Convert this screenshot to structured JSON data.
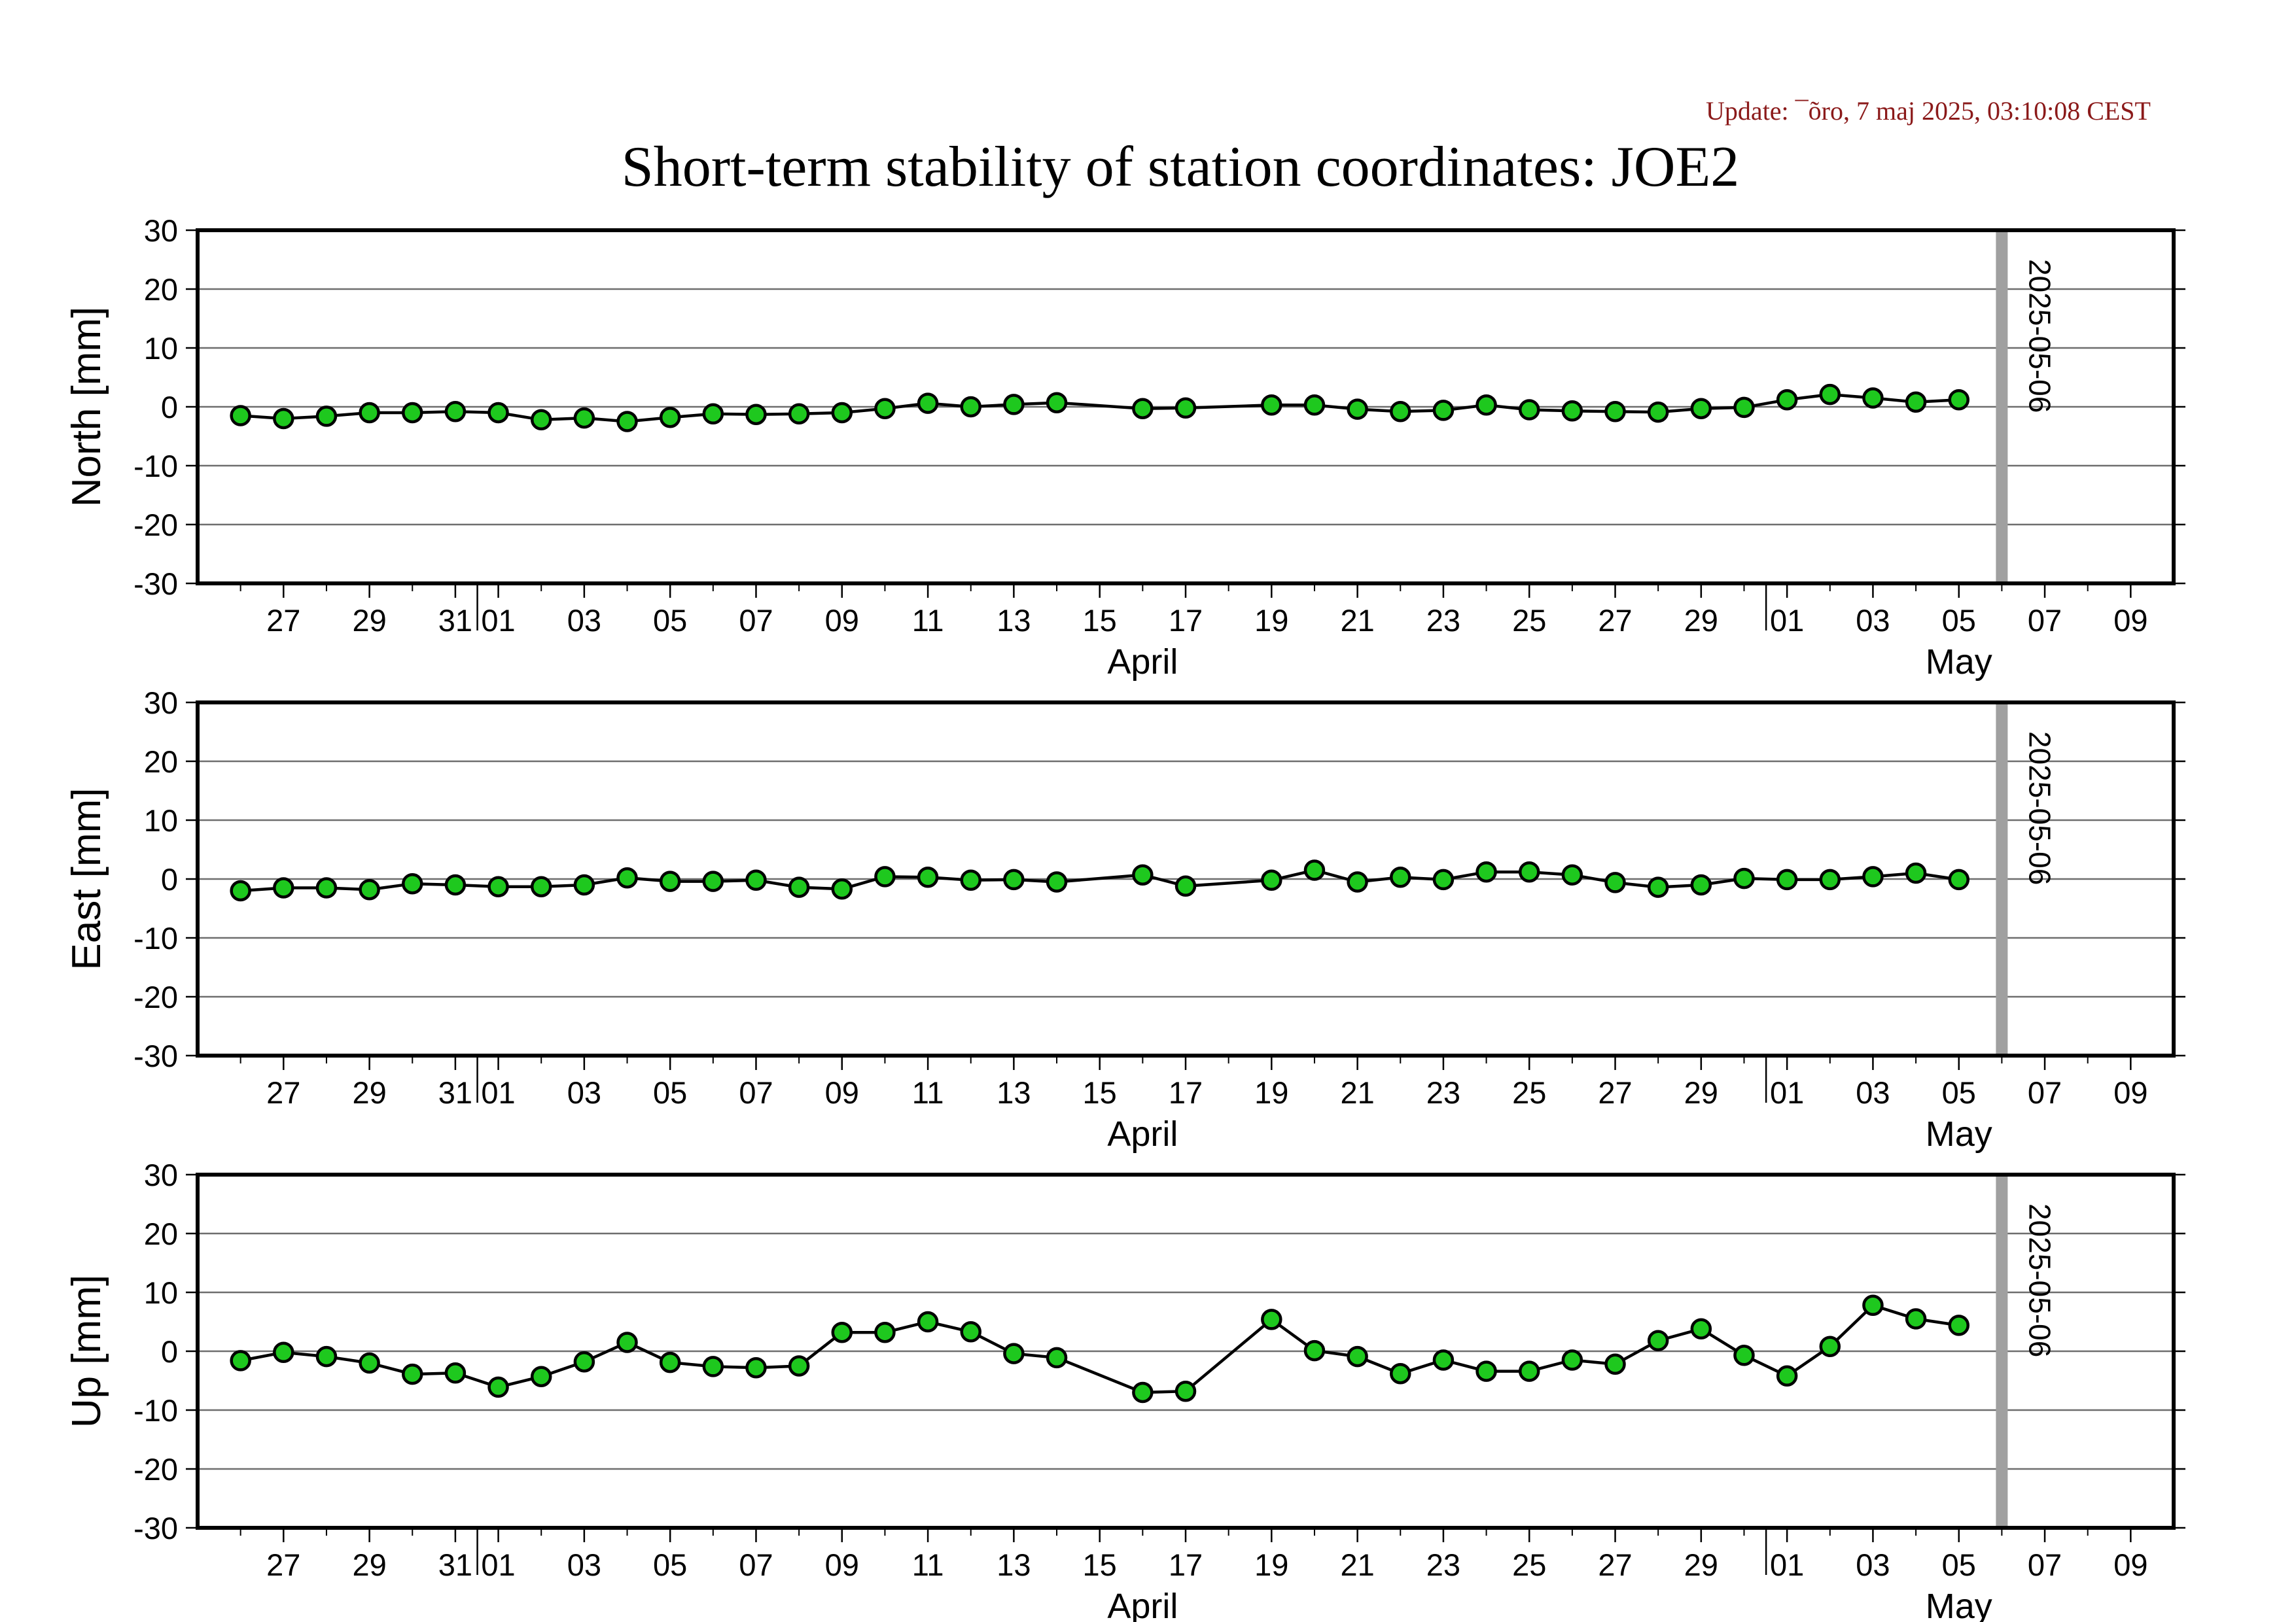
{
  "update_text": "Update: ¯õro, 7 maj 2025, 03:10:08 CEST",
  "title": "Short-term stability of station coordinates: JOE2",
  "colors": {
    "update": "#8b1a1a",
    "marker_fill": "#1ec81e",
    "marker_stroke": "#000000",
    "line": "#000000",
    "grid": "#6e6e6e",
    "marker_line": "#a0a0a0",
    "frame": "#000000"
  },
  "x_axis": {
    "range": [
      "2025-03-25",
      "2025-05-10"
    ],
    "date_tick_labels": [
      {
        "date": "2025-03-27",
        "label": "27"
      },
      {
        "date": "2025-03-29",
        "label": "29"
      },
      {
        "date": "2025-03-31",
        "label": "31"
      },
      {
        "date": "2025-04-01",
        "label": "01"
      },
      {
        "date": "2025-04-03",
        "label": "03"
      },
      {
        "date": "2025-04-05",
        "label": "05"
      },
      {
        "date": "2025-04-07",
        "label": "07"
      },
      {
        "date": "2025-04-09",
        "label": "09"
      },
      {
        "date": "2025-04-11",
        "label": "11"
      },
      {
        "date": "2025-04-13",
        "label": "13"
      },
      {
        "date": "2025-04-15",
        "label": "15"
      },
      {
        "date": "2025-04-17",
        "label": "17"
      },
      {
        "date": "2025-04-19",
        "label": "19"
      },
      {
        "date": "2025-04-21",
        "label": "21"
      },
      {
        "date": "2025-04-23",
        "label": "23"
      },
      {
        "date": "2025-04-25",
        "label": "25"
      },
      {
        "date": "2025-04-27",
        "label": "27"
      },
      {
        "date": "2025-04-29",
        "label": "29"
      },
      {
        "date": "2025-05-01",
        "label": "01"
      },
      {
        "date": "2025-05-03",
        "label": "03"
      },
      {
        "date": "2025-05-05",
        "label": "05"
      },
      {
        "date": "2025-05-07",
        "label": "07"
      },
      {
        "date": "2025-05-09",
        "label": "09"
      }
    ],
    "month_labels": [
      {
        "date": "2025-04-16",
        "label": "April"
      },
      {
        "date": "2025-05-05",
        "label": "May"
      }
    ],
    "month_boundaries": [
      "2025-04-01",
      "2025-05-01"
    ]
  },
  "marker": {
    "date": "2025-05-06",
    "label": "2025-05-06"
  },
  "chart_data": [
    {
      "type": "line",
      "ylabel": "North [mm]",
      "ylim": [
        -30,
        30
      ],
      "yticks": [
        30,
        20,
        10,
        0,
        -10,
        -20,
        -30
      ],
      "grid": true,
      "x": [
        "2025-03-26",
        "2025-03-27",
        "2025-03-28",
        "2025-03-29",
        "2025-03-30",
        "2025-03-31",
        "2025-04-01",
        "2025-04-02",
        "2025-04-03",
        "2025-04-04",
        "2025-04-05",
        "2025-04-06",
        "2025-04-07",
        "2025-04-08",
        "2025-04-09",
        "2025-04-10",
        "2025-04-11",
        "2025-04-12",
        "2025-04-13",
        "2025-04-14",
        "2025-04-16",
        "2025-04-17",
        "2025-04-19",
        "2025-04-20",
        "2025-04-21",
        "2025-04-22",
        "2025-04-23",
        "2025-04-24",
        "2025-04-25",
        "2025-04-26",
        "2025-04-27",
        "2025-04-28",
        "2025-04-29",
        "2025-04-30",
        "2025-05-01",
        "2025-05-02",
        "2025-05-03",
        "2025-05-04",
        "2025-05-05"
      ],
      "values": [
        -1.5,
        -2.0,
        -1.6,
        -1.0,
        -1.0,
        -0.8,
        -1.0,
        -2.2,
        -1.9,
        -2.5,
        -1.8,
        -1.2,
        -1.3,
        -1.2,
        -1.0,
        -0.3,
        0.6,
        0.0,
        0.4,
        0.7,
        -0.3,
        -0.2,
        0.3,
        0.3,
        -0.4,
        -0.8,
        -0.6,
        0.3,
        -0.5,
        -0.7,
        -0.8,
        -0.9,
        -0.3,
        -0.1,
        1.2,
        2.1,
        1.5,
        0.8,
        1.2
      ]
    },
    {
      "type": "line",
      "ylabel": "East [mm]",
      "ylim": [
        -30,
        30
      ],
      "yticks": [
        30,
        20,
        10,
        0,
        -10,
        -20,
        -30
      ],
      "grid": true,
      "x": [
        "2025-03-26",
        "2025-03-27",
        "2025-03-28",
        "2025-03-29",
        "2025-03-30",
        "2025-03-31",
        "2025-04-01",
        "2025-04-02",
        "2025-04-03",
        "2025-04-04",
        "2025-04-05",
        "2025-04-06",
        "2025-04-07",
        "2025-04-08",
        "2025-04-09",
        "2025-04-10",
        "2025-04-11",
        "2025-04-12",
        "2025-04-13",
        "2025-04-14",
        "2025-04-16",
        "2025-04-17",
        "2025-04-19",
        "2025-04-20",
        "2025-04-21",
        "2025-04-22",
        "2025-04-23",
        "2025-04-24",
        "2025-04-25",
        "2025-04-26",
        "2025-04-27",
        "2025-04-28",
        "2025-04-29",
        "2025-04-30",
        "2025-05-01",
        "2025-05-02",
        "2025-05-03",
        "2025-05-04",
        "2025-05-05"
      ],
      "values": [
        -2.0,
        -1.5,
        -1.5,
        -1.8,
        -0.8,
        -1.0,
        -1.3,
        -1.3,
        -1.0,
        0.2,
        -0.4,
        -0.4,
        -0.2,
        -1.4,
        -1.7,
        0.4,
        0.3,
        -0.2,
        -0.1,
        -0.5,
        0.7,
        -1.2,
        -0.2,
        1.5,
        -0.5,
        0.3,
        -0.1,
        1.2,
        1.2,
        0.7,
        -0.6,
        -1.4,
        -1.0,
        0.1,
        -0.1,
        -0.1,
        0.4,
        1.0,
        -0.1
      ]
    },
    {
      "type": "line",
      "ylabel": "Up [mm]",
      "ylim": [
        -30,
        30
      ],
      "yticks": [
        30,
        20,
        10,
        0,
        -10,
        -20,
        -30
      ],
      "grid": true,
      "x": [
        "2025-03-26",
        "2025-03-27",
        "2025-03-28",
        "2025-03-29",
        "2025-03-30",
        "2025-03-31",
        "2025-04-01",
        "2025-04-02",
        "2025-04-03",
        "2025-04-04",
        "2025-04-05",
        "2025-04-06",
        "2025-04-07",
        "2025-04-08",
        "2025-04-09",
        "2025-04-10",
        "2025-04-11",
        "2025-04-12",
        "2025-04-13",
        "2025-04-14",
        "2025-04-16",
        "2025-04-17",
        "2025-04-19",
        "2025-04-20",
        "2025-04-21",
        "2025-04-22",
        "2025-04-23",
        "2025-04-24",
        "2025-04-25",
        "2025-04-26",
        "2025-04-27",
        "2025-04-28",
        "2025-04-29",
        "2025-04-30",
        "2025-05-01",
        "2025-05-02",
        "2025-05-03",
        "2025-05-04",
        "2025-05-05"
      ],
      "values": [
        -1.6,
        -0.2,
        -0.9,
        -2.0,
        -3.9,
        -3.7,
        -6.1,
        -4.3,
        -1.8,
        1.5,
        -1.9,
        -2.6,
        -2.8,
        -2.5,
        3.2,
        3.2,
        5.0,
        3.3,
        -0.4,
        -1.1,
        -7.0,
        -6.8,
        5.4,
        0.1,
        -0.9,
        -3.8,
        -1.5,
        -3.4,
        -3.4,
        -1.5,
        -2.2,
        1.8,
        3.8,
        -0.7,
        -4.2,
        0.8,
        7.8,
        5.5,
        4.4
      ]
    }
  ]
}
